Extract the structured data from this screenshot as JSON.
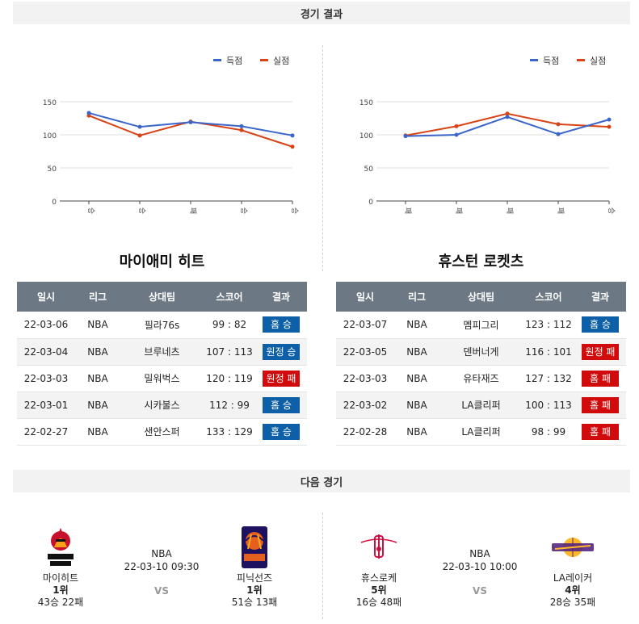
{
  "sections": {
    "results_title": "경기 결과",
    "next_title": "다음 경기"
  },
  "legend": {
    "scored": "득점",
    "conceded": "실점"
  },
  "colors": {
    "scored": "#3a66cc",
    "conceded": "#d84315",
    "win_badge": "#0d5fa8",
    "loss_badge": "#d10b0b"
  },
  "chart_data": [
    {
      "type": "line",
      "categories": [
        "승",
        "승",
        "패",
        "승",
        "승"
      ],
      "series": [
        {
          "name": "득점",
          "values": [
            133,
            112,
            119,
            113,
            99
          ]
        },
        {
          "name": "실점",
          "values": [
            129,
            99,
            120,
            107,
            82
          ]
        }
      ],
      "ylim": [
        0,
        150
      ],
      "yticks": [
        0,
        50,
        100,
        150
      ],
      "legend_position": "top-right",
      "grid": true
    },
    {
      "type": "line",
      "categories": [
        "패",
        "패",
        "패",
        "패",
        "승"
      ],
      "series": [
        {
          "name": "득점",
          "values": [
            98,
            100,
            127,
            101,
            123
          ]
        },
        {
          "name": "실점",
          "values": [
            99,
            113,
            132,
            116,
            112
          ]
        }
      ],
      "ylim": [
        0,
        150
      ],
      "yticks": [
        0,
        50,
        100,
        150
      ],
      "legend_position": "top-right",
      "grid": true
    }
  ],
  "columns": [
    "일시",
    "리그",
    "상대팀",
    "스코어",
    "결과"
  ],
  "teams": [
    {
      "title": "마이애미 히트",
      "rows": [
        {
          "date": "22-03-06",
          "league": "NBA",
          "opponent": "필라76s",
          "score": "99 : 82",
          "result": "홈 승",
          "color": "blue"
        },
        {
          "date": "22-03-04",
          "league": "NBA",
          "opponent": "브루네츠",
          "score": "107 : 113",
          "result": "원정 승",
          "color": "blue"
        },
        {
          "date": "22-03-03",
          "league": "NBA",
          "opponent": "밀워벅스",
          "score": "120 : 119",
          "result": "원정 패",
          "color": "red"
        },
        {
          "date": "22-03-01",
          "league": "NBA",
          "opponent": "시카불스",
          "score": "112 : 99",
          "result": "홈 승",
          "color": "blue"
        },
        {
          "date": "22-02-27",
          "league": "NBA",
          "opponent": "샌안스퍼",
          "score": "133 : 129",
          "result": "홈 승",
          "color": "blue"
        }
      ]
    },
    {
      "title": "휴스턴 로켓츠",
      "rows": [
        {
          "date": "22-03-07",
          "league": "NBA",
          "opponent": "멤피그리",
          "score": "123 : 112",
          "result": "홈 승",
          "color": "blue"
        },
        {
          "date": "22-03-05",
          "league": "NBA",
          "opponent": "덴버너게",
          "score": "116 : 101",
          "result": "원정 패",
          "color": "red"
        },
        {
          "date": "22-03-03",
          "league": "NBA",
          "opponent": "유타재즈",
          "score": "127 : 132",
          "result": "홈 패",
          "color": "red"
        },
        {
          "date": "22-03-02",
          "league": "NBA",
          "opponent": "LA클리퍼",
          "score": "100 : 113",
          "result": "홈 패",
          "color": "red"
        },
        {
          "date": "22-02-28",
          "league": "NBA",
          "opponent": "LA클리퍼",
          "score": "98 : 99",
          "result": "홈 패",
          "color": "red"
        }
      ]
    }
  ],
  "matches": [
    {
      "league": "NBA",
      "datetime": "22-03-10 09:30",
      "vs": "VS",
      "home": {
        "name": "마이히트",
        "rank": "1위",
        "record": "43승 22패",
        "logo": "miami-heat-logo"
      },
      "away": {
        "name": "피닉선즈",
        "rank": "1위",
        "record": "51승 13패",
        "logo": "phoenix-suns-logo"
      }
    },
    {
      "league": "NBA",
      "datetime": "22-03-10 10:00",
      "vs": "VS",
      "home": {
        "name": "휴스로케",
        "rank": "5위",
        "record": "16승 48패",
        "logo": "houston-rockets-logo"
      },
      "away": {
        "name": "LA레이커",
        "rank": "4위",
        "record": "28승 35패",
        "logo": "la-lakers-logo"
      }
    }
  ]
}
